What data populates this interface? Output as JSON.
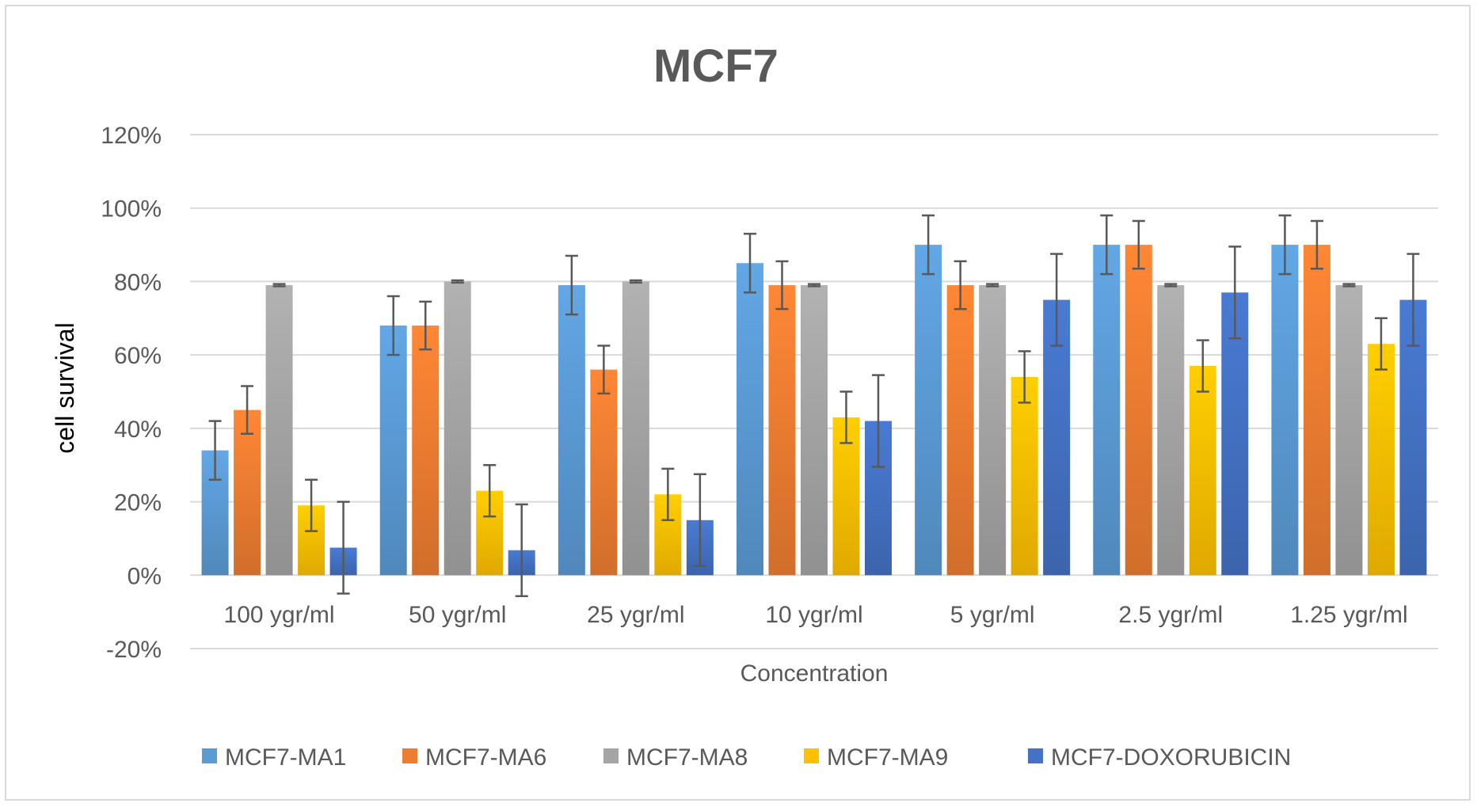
{
  "chart_data": {
    "type": "bar",
    "title": "MCF7",
    "xlabel": "Concentration",
    "ylabel": "cell survival",
    "ylim": [
      -0.2,
      1.2
    ],
    "yticks": [
      -0.2,
      0,
      0.2,
      0.4,
      0.6,
      0.8,
      1.0,
      1.2
    ],
    "ytick_labels": [
      "-20%",
      "0%",
      "20%",
      "40%",
      "60%",
      "80%",
      "100%",
      "120%"
    ],
    "grid": true,
    "legend_position": "bottom",
    "categories": [
      "100 ygr/ml",
      "50 ygr/ml",
      "25 ygr/ml",
      "10 ygr/ml",
      "5 ygr/ml",
      "2.5 ygr/ml",
      "1.25 ygr/ml"
    ],
    "series": [
      {
        "name": "MCF7-MA1",
        "color": "#5b9bd5",
        "values": [
          0.34,
          0.68,
          0.79,
          0.85,
          0.9,
          0.9,
          0.9
        ],
        "errors": [
          0.08,
          0.08,
          0.08,
          0.08,
          0.08,
          0.08,
          0.08
        ]
      },
      {
        "name": "MCF7-MA6",
        "color": "#ed7d31",
        "values": [
          0.45,
          0.68,
          0.56,
          0.79,
          0.79,
          0.9,
          0.9
        ],
        "errors": [
          0.065,
          0.065,
          0.065,
          0.065,
          0.065,
          0.065,
          0.065
        ]
      },
      {
        "name": "MCF7-MA8",
        "color": "#a5a5a5",
        "values": [
          0.79,
          0.8,
          0.8,
          0.79,
          0.79,
          0.79,
          0.79
        ],
        "errors": [
          0.003,
          0.003,
          0.003,
          0.003,
          0.003,
          0.003,
          0.003
        ]
      },
      {
        "name": "MCF7-MA9",
        "color": "#ffc000",
        "values": [
          0.19,
          0.23,
          0.22,
          0.43,
          0.54,
          0.57,
          0.63
        ],
        "errors": [
          0.07,
          0.07,
          0.07,
          0.07,
          0.07,
          0.07,
          0.07
        ]
      },
      {
        "name": "MCF7-DOXORUBICIN",
        "color": "#4472c4",
        "values": [
          0.075,
          0.068,
          0.15,
          0.42,
          0.75,
          0.77,
          0.75
        ],
        "errors": [
          0.125,
          0.125,
          0.125,
          0.125,
          0.125,
          0.125,
          0.125
        ]
      }
    ]
  }
}
